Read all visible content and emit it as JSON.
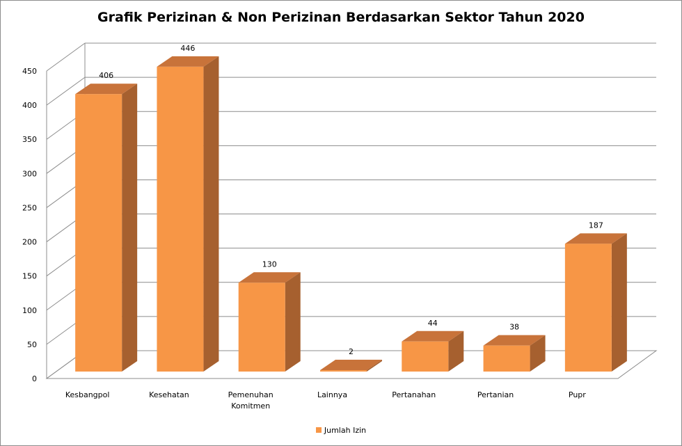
{
  "chart_data": {
    "type": "bar",
    "title": "Grafik Perizinan & Non Perizinan Berdasarkan Sektor Tahun 2020",
    "categories": [
      "Kesbangpol",
      "Kesehatan",
      "Pemenuhan Komitmen",
      "Lainnya",
      "Pertanahan",
      "Pertanian",
      "Pupr"
    ],
    "category_labels": [
      [
        "Kesbangpol"
      ],
      [
        "Kesehatan"
      ],
      [
        "Pemenuhan",
        "Komitmen"
      ],
      [
        "Lainnya"
      ],
      [
        "Pertanahan"
      ],
      [
        "Pertanian"
      ],
      [
        "Pupr"
      ]
    ],
    "series": [
      {
        "name": "Jumlah Izin",
        "values": [
          406,
          446,
          130,
          2,
          44,
          38,
          187
        ]
      }
    ],
    "ylim": [
      0,
      450
    ],
    "yticks": [
      0,
      50,
      100,
      150,
      200,
      250,
      300,
      350,
      400,
      450
    ],
    "grid": true,
    "legend": "bottom",
    "style": "3d"
  },
  "colors": {
    "bar_front": "#f79646",
    "bar_top": "#c8733a",
    "bar_side": "#a6602f",
    "grid": "#8c8c8c",
    "axis": "#8c8c8c"
  }
}
